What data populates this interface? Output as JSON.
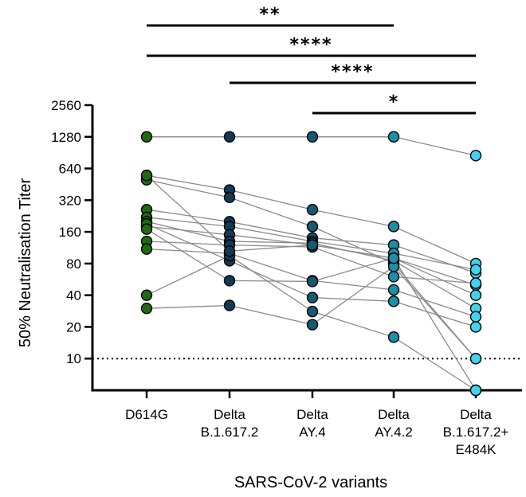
{
  "chart_data": {
    "type": "scatter",
    "ylabel": "50% Neutralisation Titer",
    "xlabel": "SARS-CoV-2 variants",
    "yscale": "log2",
    "ylim": [
      5,
      2560
    ],
    "yticks": [
      10,
      20,
      40,
      80,
      160,
      320,
      640,
      1280,
      2560
    ],
    "threshold": 10,
    "categories": [
      {
        "lines": [
          "D614G"
        ],
        "color": "#1f6b12"
      },
      {
        "lines": [
          "Delta",
          "B.1.617.2"
        ],
        "color": "#123a52"
      },
      {
        "lines": [
          "Delta",
          "AY.4"
        ],
        "color": "#155a72"
      },
      {
        "lines": [
          "Delta",
          "AY.4.2"
        ],
        "color": "#1c8ea8"
      },
      {
        "lines": [
          "Delta",
          "B.1.617.2+",
          "E484K"
        ],
        "color": "#43d2ee"
      }
    ],
    "subjects": [
      [
        1280,
        1280,
        1280,
        1280,
        850
      ],
      [
        550,
        400,
        260,
        180,
        80
      ],
      [
        500,
        340,
        180,
        80,
        10
      ],
      [
        260,
        200,
        140,
        120,
        65
      ],
      [
        220,
        180,
        130,
        100,
        70
      ],
      [
        180,
        150,
        120,
        90,
        50
      ],
      [
        200,
        130,
        125,
        85,
        30
      ],
      [
        130,
        120,
        115,
        60,
        52
      ],
      [
        110,
        100,
        55,
        45,
        25
      ],
      [
        190,
        85,
        38,
        35,
        20
      ],
      [
        170,
        55,
        54,
        90,
        5
      ],
      [
        40,
        95,
        28,
        16,
        5
      ],
      [
        30,
        32,
        21,
        75,
        10
      ],
      [
        550,
        105,
        120,
        90,
        40
      ]
    ],
    "significance": [
      {
        "from": 0,
        "to": 3,
        "label": "**"
      },
      {
        "from": 0,
        "to": 4,
        "label": "****"
      },
      {
        "from": 1,
        "to": 4,
        "label": "****"
      },
      {
        "from": 2,
        "to": 4,
        "label": "*"
      }
    ]
  }
}
